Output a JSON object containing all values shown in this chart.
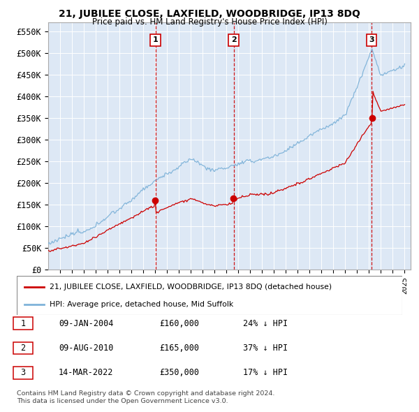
{
  "title": "21, JUBILEE CLOSE, LAXFIELD, WOODBRIDGE, IP13 8DQ",
  "subtitle": "Price paid vs. HM Land Registry's House Price Index (HPI)",
  "ylabel_ticks": [
    "£0",
    "£50K",
    "£100K",
    "£150K",
    "£200K",
    "£250K",
    "£300K",
    "£350K",
    "£400K",
    "£450K",
    "£500K",
    "£550K"
  ],
  "ytick_values": [
    0,
    50000,
    100000,
    150000,
    200000,
    250000,
    300000,
    350000,
    400000,
    450000,
    500000,
    550000
  ],
  "ylim": [
    0,
    570000
  ],
  "legend_line1": "21, JUBILEE CLOSE, LAXFIELD, WOODBRIDGE, IP13 8DQ (detached house)",
  "legend_line2": "HPI: Average price, detached house, Mid Suffolk",
  "sale1_date": "09-JAN-2004",
  "sale1_price": "£160,000",
  "sale1_hpi": "24% ↓ HPI",
  "sale2_date": "09-AUG-2010",
  "sale2_price": "£165,000",
  "sale2_hpi": "37% ↓ HPI",
  "sale3_date": "14-MAR-2022",
  "sale3_price": "£350,000",
  "sale3_hpi": "17% ↓ HPI",
  "footnote1": "Contains HM Land Registry data © Crown copyright and database right 2024.",
  "footnote2": "This data is licensed under the Open Government Licence v3.0.",
  "line_color_red": "#cc0000",
  "line_color_blue": "#7fb3d9",
  "vline_color": "#cc0000",
  "plot_bg_color": "#dde8f5",
  "sale_years": [
    2004.03,
    2010.61,
    2022.21
  ],
  "sale_prices": [
    160000,
    165000,
    350000
  ],
  "xtick_start": 1996,
  "xtick_end": 2025,
  "xmin": 1995.0,
  "xmax": 2025.5
}
